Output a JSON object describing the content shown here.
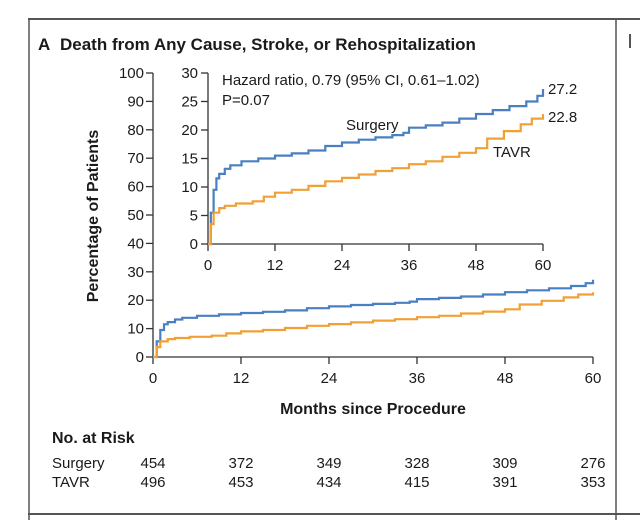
{
  "panel": {
    "letter": "A",
    "title": "Death from Any Cause, Stroke, or Rehospitalization"
  },
  "chart_data": {
    "type": "line",
    "title": "Death from Any Cause, Stroke, or Rehospitalization",
    "xlabel": "Months since Procedure",
    "ylabel": "Percentage of Patients",
    "xlim": [
      0,
      60
    ],
    "ylim": [
      0,
      100
    ],
    "x_ticks": [
      "0",
      "12",
      "24",
      "36",
      "48",
      "60"
    ],
    "y_ticks": [
      "0",
      "10",
      "20",
      "30",
      "40",
      "50",
      "60",
      "70",
      "80",
      "90",
      "100"
    ],
    "grid": false,
    "series": [
      {
        "name": "Surgery",
        "color": "#4a7fc1",
        "end_label": "27.2",
        "x": [
          0,
          0.5,
          1,
          1.5,
          2,
          3,
          4,
          6,
          9,
          12,
          15,
          18,
          21,
          24,
          27,
          30,
          33,
          35,
          36,
          39,
          42,
          45,
          48,
          51,
          54,
          57,
          59,
          60
        ],
        "y": [
          0,
          5.5,
          9.5,
          11.5,
          12.3,
          13.2,
          13.8,
          14.5,
          15.0,
          15.5,
          15.9,
          16.4,
          17.2,
          17.8,
          18.3,
          18.7,
          19.1,
          19.5,
          20.4,
          20.8,
          21.3,
          22.0,
          22.8,
          23.5,
          24.2,
          25.0,
          26.0,
          27.2
        ]
      },
      {
        "name": "TAVR",
        "color": "#f0a035",
        "end_label": "22.8",
        "x": [
          0,
          0.5,
          1,
          2,
          3,
          5,
          8,
          10,
          12,
          15,
          18,
          21,
          24,
          27,
          30,
          33,
          36,
          39,
          42,
          45,
          48,
          50,
          53,
          56,
          58,
          60
        ],
        "y": [
          0,
          3.5,
          5.5,
          6.3,
          6.7,
          7.1,
          7.5,
          8.3,
          9.0,
          9.5,
          10.2,
          11.0,
          11.6,
          12.2,
          12.8,
          13.3,
          14.0,
          14.5,
          15.3,
          16.0,
          16.8,
          18.5,
          19.8,
          21.0,
          22.0,
          22.8
        ]
      }
    ],
    "inset": {
      "ylim": [
        0,
        30
      ],
      "y_ticks": [
        "0",
        "5",
        "10",
        "15",
        "20",
        "25",
        "30"
      ],
      "x_ticks": [
        "0",
        "12",
        "24",
        "36",
        "48",
        "60"
      ],
      "annotation_lines": [
        "Hazard ratio, 0.79 (95% CI, 0.61–1.02)",
        "P=0.07"
      ],
      "series_labels": [
        "Surgery",
        "TAVR"
      ],
      "end_labels": [
        "27.2",
        "22.8"
      ]
    }
  },
  "risk_table": {
    "title": "No. at Risk",
    "rows": [
      {
        "label": "Surgery",
        "values": [
          "454",
          "372",
          "349",
          "328",
          "309",
          "276"
        ]
      },
      {
        "label": "TAVR",
        "values": [
          "496",
          "453",
          "434",
          "415",
          "391",
          "353"
        ]
      }
    ]
  }
}
